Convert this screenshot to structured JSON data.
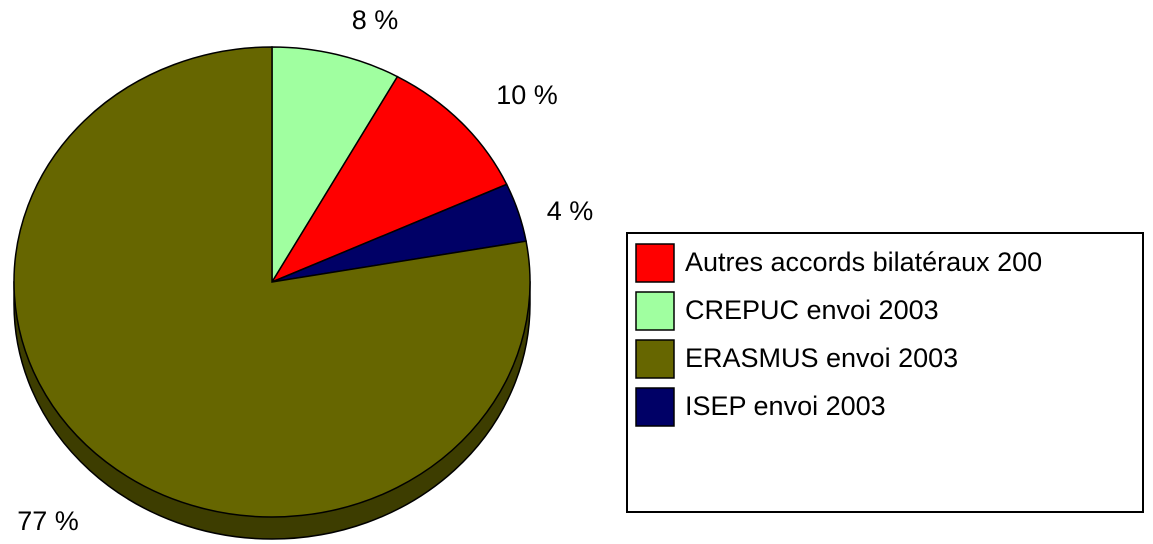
{
  "chart_data": {
    "type": "pie",
    "categories": [
      "Autres accords bilatéraux 200",
      "CREPUC envoi 2003",
      "ERASMUS envoi 2003",
      "ISEP envoi 2003"
    ],
    "values": [
      10,
      8,
      77,
      4
    ],
    "value_labels": [
      "10 %",
      "8 %",
      "77 %",
      "4 %"
    ],
    "colors": [
      "#ff0000",
      "#a0ffa0",
      "#666600",
      "#000066"
    ],
    "legend": "right"
  }
}
